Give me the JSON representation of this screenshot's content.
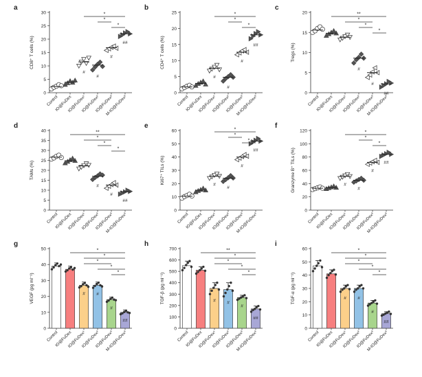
{
  "chart_data": [
    {
      "panel": "a",
      "type": "scatter",
      "ylabel": "CD8⁺ T cells (%)",
      "categories": [
        "Control",
        "IO@FuDex",
        "IO@FuDex¹",
        "IO@FuDex²",
        "IO@FuDex³",
        "M-IO@FuDex³"
      ],
      "ylim": [
        0,
        30
      ],
      "yticks": [
        0,
        5,
        10,
        15,
        20,
        25,
        30
      ],
      "markers": [
        "circle",
        "triangle",
        "triangle-down",
        "diamond",
        "triangle-left",
        "triangle-right"
      ],
      "means": [
        2.3,
        3.9,
        11.5,
        10.3,
        16.8,
        22.0
      ],
      "points": [
        [
          1.4,
          2.0,
          2.4,
          3.0,
          2.6
        ],
        [
          3.0,
          3.6,
          4.4,
          3.8,
          4.6
        ],
        [
          10.0,
          11.5,
          12.5,
          11.0,
          13.0
        ],
        [
          8.5,
          9.6,
          10.6,
          11.4,
          9.8
        ],
        [
          15.8,
          16.4,
          17.0,
          17.4,
          16.6
        ],
        [
          21.0,
          21.6,
          22.3,
          22.8,
          22.0
        ]
      ],
      "hashes": [
        "",
        "",
        "#",
        "#",
        "#",
        "##"
      ],
      "sig": [
        {
          "from": 2,
          "to": 5,
          "label": "*"
        },
        {
          "from": 3,
          "to": 4,
          "label": "*"
        },
        {
          "from": 4,
          "to": 5,
          "label": "*"
        }
      ]
    },
    {
      "panel": "b",
      "type": "scatter",
      "ylabel": "CD4⁺ T cells (%)",
      "categories": [
        "Control",
        "IO@FuDex",
        "IO@FuDex¹",
        "IO@FuDex²",
        "IO@FuDex³",
        "M-IO@FuDex³"
      ],
      "ylim": [
        0,
        25
      ],
      "yticks": [
        0,
        5,
        10,
        15,
        20,
        25
      ],
      "markers": [
        "circle",
        "triangle",
        "triangle-down",
        "diamond",
        "triangle-left",
        "triangle-right"
      ],
      "means": [
        1.8,
        2.9,
        7.6,
        4.8,
        12.6,
        18.0
      ],
      "points": [
        [
          1.2,
          1.6,
          2.0,
          2.3,
          1.8
        ],
        [
          2.2,
          2.8,
          3.2,
          3.6,
          2.6
        ],
        [
          6.8,
          7.4,
          8.0,
          8.6,
          7.2
        ],
        [
          3.6,
          4.4,
          5.0,
          5.6,
          4.8
        ],
        [
          11.8,
          12.4,
          13.0,
          13.4,
          12.6
        ],
        [
          16.8,
          17.6,
          18.4,
          19.0,
          18.0
        ]
      ],
      "hashes": [
        "",
        "",
        "#",
        "#",
        "#",
        "##"
      ],
      "sig": [
        {
          "from": 2,
          "to": 5,
          "label": "*"
        },
        {
          "from": 3,
          "to": 4,
          "label": "*"
        },
        {
          "from": 4,
          "to": 5,
          "label": "*"
        }
      ]
    },
    {
      "panel": "c",
      "type": "scatter",
      "ylabel": "Tregs (%)",
      "categories": [
        "Control",
        "IO@FuDex",
        "IO@FuDex¹",
        "IO@FuDex²",
        "IO@FuDex³",
        "M-IO@FuDex³"
      ],
      "ylim": [
        0,
        20
      ],
      "yticks": [
        0,
        5,
        10,
        15,
        20
      ],
      "markers": [
        "circle",
        "triangle",
        "triangle-down",
        "diamond",
        "triangle-left",
        "triangle-right"
      ],
      "means": [
        15.6,
        14.8,
        13.8,
        8.6,
        5.0,
        2.2
      ],
      "points": [
        [
          15.0,
          15.4,
          16.0,
          16.4,
          15.8
        ],
        [
          14.2,
          14.6,
          15.0,
          15.4,
          14.8
        ],
        [
          13.2,
          13.6,
          14.0,
          14.4,
          13.8
        ],
        [
          7.4,
          8.2,
          8.8,
          9.6,
          8.6
        ],
        [
          3.8,
          4.4,
          5.2,
          6.2,
          5.0
        ],
        [
          1.4,
          1.8,
          2.2,
          2.8,
          2.4
        ]
      ],
      "hashes": [
        "",
        "",
        "",
        "#",
        "#",
        "##"
      ],
      "sig": [
        {
          "from": 1,
          "to": 5,
          "label": "**"
        },
        {
          "from": 2,
          "to": 4,
          "label": "*"
        },
        {
          "from": 3,
          "to": 4,
          "label": "*"
        },
        {
          "from": 4,
          "to": 5,
          "label": "*"
        }
      ]
    },
    {
      "panel": "d",
      "type": "scatter",
      "ylabel": "TAMs (%)",
      "categories": [
        "Control",
        "IO@FuDex",
        "IO@FuDex¹",
        "IO@FuDex²",
        "IO@FuDex³",
        "M-IO@FuDex³"
      ],
      "ylim": [
        0,
        40
      ],
      "yticks": [
        0,
        5,
        10,
        15,
        20,
        25,
        30,
        35,
        40
      ],
      "markers": [
        "circle",
        "triangle",
        "triangle-down",
        "diamond",
        "triangle-left",
        "triangle-right"
      ],
      "means": [
        26.6,
        24.8,
        22.2,
        17.0,
        12.6,
        9.2
      ],
      "points": [
        [
          25.6,
          26.2,
          27.0,
          27.6,
          26.4
        ],
        [
          23.6,
          24.4,
          25.2,
          26.0,
          24.8
        ],
        [
          20.8,
          21.6,
          22.4,
          23.4,
          22.6
        ],
        [
          15.4,
          16.4,
          17.2,
          18.2,
          17.6
        ],
        [
          11.0,
          12.0,
          12.8,
          13.8,
          12.6
        ],
        [
          8.0,
          8.6,
          9.2,
          10.0,
          9.4
        ]
      ],
      "hashes": [
        "",
        "",
        "",
        "#",
        "#",
        "##"
      ],
      "sig": [
        {
          "from": 1,
          "to": 5,
          "label": "**"
        },
        {
          "from": 2,
          "to": 4,
          "label": "*"
        },
        {
          "from": 3,
          "to": 4,
          "label": "*"
        },
        {
          "from": 4,
          "to": 5,
          "label": "*"
        }
      ]
    },
    {
      "panel": "e",
      "type": "scatter",
      "ylabel": "Ki67⁺ TILs (%)",
      "categories": [
        "Control",
        "IO@FuDex",
        "IO@FuDex¹",
        "IO@FuDex²",
        "IO@FuDex³",
        "M-IO@FuDex³"
      ],
      "ylim": [
        0,
        60
      ],
      "yticks": [
        0,
        10,
        20,
        30,
        40,
        50,
        60
      ],
      "markers": [
        "circle",
        "triangle",
        "triangle-down",
        "diamond",
        "triangle-left",
        "triangle-right"
      ],
      "means": [
        10.5,
        15.0,
        25.5,
        24.0,
        40.0,
        52.0
      ],
      "points": [
        [
          9.0,
          10.2,
          11.0,
          12.0,
          10.6
        ],
        [
          13.6,
          14.6,
          15.4,
          16.4,
          15.0
        ],
        [
          24.0,
          25.2,
          26.4,
          27.4,
          25.6
        ],
        [
          21.6,
          23.0,
          24.4,
          26.0,
          24.2
        ],
        [
          38.0,
          39.2,
          40.4,
          41.8,
          40.6
        ],
        [
          50.0,
          51.4,
          52.6,
          54.0,
          52.0
        ]
      ],
      "hashes": [
        "",
        "",
        "#",
        "#",
        "#",
        "##"
      ],
      "sig": [
        {
          "from": 2,
          "to": 5,
          "label": "*"
        },
        {
          "from": 3,
          "to": 4,
          "label": "*"
        },
        {
          "from": 4,
          "to": 5,
          "label": "*"
        }
      ]
    },
    {
      "panel": "f",
      "type": "scatter",
      "ylabel": "Granzyme B⁺ TILs (%)",
      "categories": [
        "Control",
        "IO@FuDex",
        "IO@FuDex¹",
        "IO@FuDex²",
        "IO@FuDex³",
        "M-IO@FuDex³"
      ],
      "ylim": [
        0,
        120
      ],
      "yticks": [
        0,
        20,
        40,
        60,
        80,
        100,
        120
      ],
      "markers": [
        "circle",
        "triangle",
        "triangle-down",
        "diamond",
        "triangle-left",
        "triangle-right"
      ],
      "means": [
        33.0,
        34.0,
        51.0,
        45.0,
        72.0,
        84.0
      ],
      "points": [
        [
          31.0,
          32.4,
          33.6,
          35.0,
          33.0
        ],
        [
          32.0,
          33.4,
          34.6,
          36.0,
          34.0
        ],
        [
          48.0,
          50.0,
          52.0,
          54.0,
          51.0
        ],
        [
          42.0,
          44.0,
          46.0,
          48.0,
          45.0
        ],
        [
          69.0,
          71.0,
          73.0,
          75.0,
          72.0
        ],
        [
          81.0,
          83.0,
          85.0,
          87.0,
          84.0
        ]
      ],
      "hashes": [
        "",
        "",
        "#",
        "#",
        "#",
        "##"
      ],
      "sig": [
        {
          "from": 2,
          "to": 5,
          "label": "*"
        },
        {
          "from": 3,
          "to": 4,
          "label": "*"
        },
        {
          "from": 4,
          "to": 5,
          "label": "*"
        }
      ]
    },
    {
      "panel": "g",
      "type": "bar",
      "ylabel": "VEGF (pg ml⁻¹)",
      "categories": [
        "Control",
        "IO@FuDex",
        "IO@FuDex¹",
        "IO@FuDex²",
        "IO@FuDex³",
        "M-IO@FuDex³"
      ],
      "ylim": [
        0,
        50
      ],
      "yticks": [
        0,
        10,
        20,
        30,
        40,
        50
      ],
      "colors": [
        "#ffffff",
        "#f77f7f",
        "#fcd08a",
        "#92c2e6",
        "#a8d58c",
        "#a8a7d6"
      ],
      "values": [
        39.0,
        37.0,
        27.0,
        27.0,
        18.0,
        10.0
      ],
      "errors": [
        2.0,
        2.0,
        2.0,
        2.0,
        1.5,
        1.5
      ],
      "points": [
        [
          37.0,
          38.2,
          39.6,
          40.6,
          39.0,
          40.0
        ],
        [
          35.6,
          36.4,
          37.6,
          38.2,
          36.8,
          37.8
        ],
        [
          25.6,
          26.4,
          27.6,
          28.4,
          27.0,
          26.0
        ],
        [
          25.4,
          26.6,
          27.8,
          28.6,
          27.0,
          26.2
        ],
        [
          16.6,
          17.4,
          18.4,
          19.2,
          18.0,
          17.6
        ],
        [
          8.8,
          9.4,
          10.2,
          11.0,
          10.0,
          9.6
        ]
      ],
      "hashes": [
        "",
        "",
        "#",
        "#",
        "#",
        "##"
      ],
      "sig": [
        {
          "from": 1,
          "to": 5,
          "label": "*"
        },
        {
          "from": 2,
          "to": 5,
          "label": "*"
        },
        {
          "from": 2,
          "to": 4,
          "label": "*"
        },
        {
          "from": 3,
          "to": 5,
          "label": "*"
        },
        {
          "from": 4,
          "to": 5,
          "label": "*"
        }
      ]
    },
    {
      "panel": "h",
      "type": "bar",
      "ylabel": "TGF-β (pg ml⁻¹)",
      "categories": [
        "Control",
        "IO@FuDex",
        "IO@FuDex¹",
        "IO@FuDex²",
        "IO@FuDex³",
        "M-IO@FuDex³"
      ],
      "ylim": [
        0,
        700
      ],
      "yticks": [
        0,
        100,
        200,
        300,
        400,
        500,
        600,
        700
      ],
      "colors": [
        "#ffffff",
        "#f77f7f",
        "#fcd08a",
        "#92c2e6",
        "#a8d58c",
        "#a8a7d6"
      ],
      "values": [
        550,
        510,
        350,
        340,
        270,
        170
      ],
      "errors": [
        40,
        30,
        50,
        60,
        20,
        25
      ],
      "points": [
        [
          510,
          530,
          555,
          575,
          590,
          540
        ],
        [
          480,
          495,
          510,
          525,
          540,
          505
        ],
        [
          300,
          330,
          355,
          380,
          400,
          340
        ],
        [
          280,
          310,
          340,
          370,
          400,
          330
        ],
        [
          250,
          260,
          270,
          280,
          290,
          265
        ],
        [
          145,
          160,
          170,
          185,
          195,
          165
        ]
      ],
      "hashes": [
        "",
        "",
        "#",
        "#",
        "#",
        "##"
      ],
      "sig": [
        {
          "from": 1,
          "to": 5,
          "label": "**"
        },
        {
          "from": 2,
          "to": 5,
          "label": "*"
        },
        {
          "from": 2,
          "to": 4,
          "label": "*"
        },
        {
          "from": 3,
          "to": 5,
          "label": "*"
        },
        {
          "from": 4,
          "to": 5,
          "label": "*"
        }
      ]
    },
    {
      "panel": "i",
      "type": "bar",
      "ylabel": "TGF-α (pg ml⁻¹)",
      "categories": [
        "Control",
        "IO@FuDex",
        "IO@FuDex¹",
        "IO@FuDex²",
        "IO@FuDex³",
        "M-IO@FuDex³"
      ],
      "ylim": [
        0,
        60
      ],
      "yticks": [
        0,
        10,
        20,
        30,
        40,
        50,
        60
      ],
      "colors": [
        "#ffffff",
        "#f77f7f",
        "#fcd08a",
        "#92c2e6",
        "#a8d58c",
        "#a8a7d6"
      ],
      "values": [
        47.0,
        41.0,
        30.0,
        30.0,
        19.0,
        11.0
      ],
      "errors": [
        4.0,
        3.0,
        2.5,
        2.5,
        2.0,
        1.5
      ],
      "points": [
        [
          43.0,
          45.0,
          47.0,
          49.0,
          51.0,
          46.0
        ],
        [
          38.0,
          40.0,
          41.5,
          43.0,
          44.0,
          40.5
        ],
        [
          27.5,
          29.0,
          30.0,
          31.5,
          32.5,
          29.5
        ],
        [
          27.5,
          29.0,
          30.0,
          31.5,
          32.5,
          30.0
        ],
        [
          17.0,
          18.0,
          19.0,
          20.0,
          21.0,
          18.5
        ],
        [
          9.5,
          10.2,
          11.0,
          11.8,
          12.5,
          10.8
        ]
      ],
      "hashes": [
        "",
        "",
        "#",
        "#",
        "#",
        "##"
      ],
      "sig": [
        {
          "from": 1,
          "to": 5,
          "label": "*"
        },
        {
          "from": 2,
          "to": 5,
          "label": "*"
        },
        {
          "from": 2,
          "to": 4,
          "label": "*"
        },
        {
          "from": 3,
          "to": 5,
          "label": "*"
        },
        {
          "from": 4,
          "to": 5,
          "label": "*"
        }
      ]
    }
  ]
}
